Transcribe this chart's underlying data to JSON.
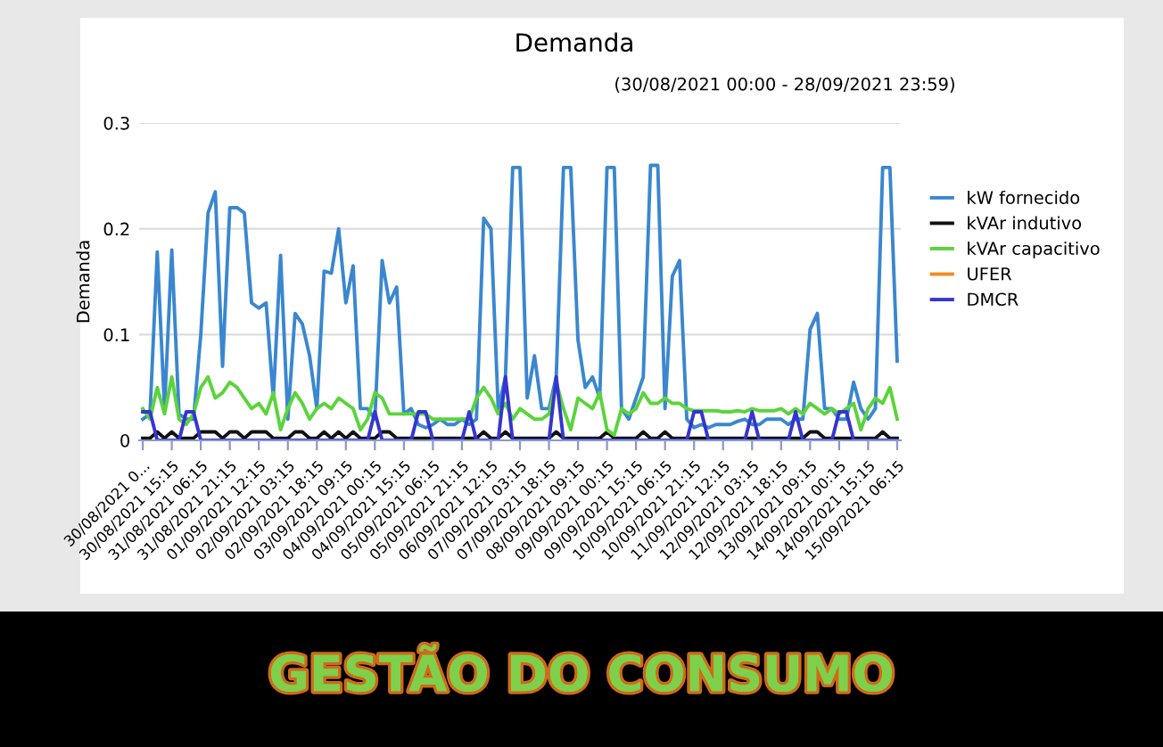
{
  "chart_data": {
    "type": "line",
    "title": "Demanda",
    "subtitle": "(30/08/2021 00:00 - 28/09/2021 23:59)",
    "ylabel": "Demanda",
    "categories": [
      "30/08/2021 0...",
      null,
      null,
      null,
      "30/08/2021 15:15",
      null,
      null,
      null,
      "31/08/2021 06:15",
      null,
      null,
      null,
      "31/08/2021 21:15",
      null,
      null,
      null,
      "01/09/2021 12:15",
      null,
      null,
      null,
      "02/09/2021 03:15",
      null,
      null,
      null,
      "02/09/2021 18:15",
      null,
      null,
      null,
      "03/09/2021 09:15",
      null,
      null,
      null,
      "04/09/2021 00:15",
      null,
      null,
      null,
      "04/09/2021 15:15",
      null,
      null,
      null,
      "05/09/2021 06:15",
      null,
      null,
      null,
      "05/09/2021 21:15",
      null,
      null,
      null,
      "06/09/2021 12:15",
      null,
      null,
      null,
      "07/09/2021 03:15",
      null,
      null,
      null,
      "07/09/2021 18:15",
      null,
      null,
      null,
      "08/09/2021 09:15",
      null,
      null,
      null,
      "09/09/2021 00:15",
      null,
      null,
      null,
      "09/09/2021 15:15",
      null,
      null,
      null,
      "10/09/2021 06:15",
      null,
      null,
      null,
      "10/09/2021 21:15",
      null,
      null,
      null,
      "11/09/2021 12:15",
      null,
      null,
      null,
      "12/09/2021 03:15",
      null,
      null,
      null,
      "12/09/2021 18:15",
      null,
      null,
      null,
      "13/09/2021 09:15",
      null,
      null,
      null,
      "14/09/2021 00:15",
      null,
      null,
      null,
      "14/09/2021 15:15",
      null,
      null,
      null,
      "15/09/2021 06:15"
    ],
    "series": [
      {
        "name": "kW fornecido",
        "color": "#3a87d0",
        "values": [
          0.02,
          0.025,
          0.178,
          0.03,
          0.18,
          0.025,
          0.02,
          0.02,
          0.1,
          0.215,
          0.235,
          0.07,
          0.22,
          0.22,
          0.215,
          0.13,
          0.125,
          0.13,
          0.04,
          0.175,
          0.02,
          0.12,
          0.11,
          0.08,
          0.03,
          0.16,
          0.158,
          0.2,
          0.13,
          0.165,
          0.03,
          0.03,
          0.02,
          0.17,
          0.13,
          0.145,
          0.025,
          0.03,
          0.015,
          0.012,
          0.015,
          0.02,
          0.015,
          0.015,
          0.02,
          0.015,
          0.02,
          0.21,
          0.2,
          0.03,
          0.06,
          0.258,
          0.258,
          0.04,
          0.08,
          0.03,
          0.03,
          0.06,
          0.258,
          0.258,
          0.095,
          0.05,
          0.06,
          0.04,
          0.258,
          0.258,
          0.03,
          0.02,
          0.04,
          0.06,
          0.26,
          0.26,
          0.03,
          0.155,
          0.17,
          0.02,
          0.012,
          0.015,
          0.012,
          0.015,
          0.015,
          0.015,
          0.018,
          0.02,
          0.015,
          0.015,
          0.02,
          0.02,
          0.02,
          0.015,
          0.02,
          0.02,
          0.105,
          0.12,
          0.03,
          0.03,
          0.02,
          0.02,
          0.055,
          0.03,
          0.02,
          0.03,
          0.258,
          0.258,
          0.075
        ]
      },
      {
        "name": "kVAr indutivo",
        "color": "#111111",
        "values": [
          0.002,
          0.002,
          0.008,
          0.002,
          0.008,
          0.002,
          0.002,
          0.002,
          0.008,
          0.008,
          0.008,
          0.002,
          0.008,
          0.008,
          0.002,
          0.008,
          0.008,
          0.008,
          0.002,
          0.002,
          0.002,
          0.008,
          0.008,
          0.002,
          0.002,
          0.008,
          0.002,
          0.008,
          0.002,
          0.008,
          0.002,
          0.002,
          0.002,
          0.008,
          0.008,
          0.002,
          0.002,
          0.002,
          0.002,
          0.002,
          0.002,
          0.002,
          0.002,
          0.002,
          0.002,
          0.002,
          0.002,
          0.008,
          0.002,
          0.002,
          0.008,
          0.002,
          0.002,
          0.002,
          0.002,
          0.002,
          0.002,
          0.008,
          0.002,
          0.002,
          0.002,
          0.002,
          0.002,
          0.002,
          0.008,
          0.002,
          0.002,
          0.002,
          0.002,
          0.008,
          0.002,
          0.002,
          0.008,
          0.002,
          0.002,
          0.002,
          0.002,
          0.002,
          0.002,
          0.002,
          0.002,
          0.002,
          0.002,
          0.002,
          0.002,
          0.002,
          0.002,
          0.002,
          0.002,
          0.002,
          0.002,
          0.002,
          0.008,
          0.008,
          0.002,
          0.002,
          0.002,
          0.002,
          0.002,
          0.002,
          0.002,
          0.002,
          0.008,
          0.002,
          0.002
        ]
      },
      {
        "name": "kVAr capacitivo",
        "color": "#5bd43c",
        "values": [
          0.03,
          0.02,
          0.05,
          0.025,
          0.06,
          0.02,
          0.015,
          0.025,
          0.05,
          0.06,
          0.04,
          0.045,
          0.055,
          0.05,
          0.04,
          0.03,
          0.035,
          0.025,
          0.045,
          0.01,
          0.03,
          0.045,
          0.035,
          0.02,
          0.03,
          0.035,
          0.03,
          0.04,
          0.035,
          0.03,
          0.01,
          0.02,
          0.045,
          0.04,
          0.025,
          0.025,
          0.025,
          0.025,
          0.025,
          0.025,
          0.02,
          0.02,
          0.02,
          0.02,
          0.02,
          0.02,
          0.04,
          0.05,
          0.04,
          0.025,
          0.035,
          0.02,
          0.03,
          0.025,
          0.02,
          0.02,
          0.025,
          0.055,
          0.03,
          0.01,
          0.04,
          0.035,
          0.03,
          0.045,
          0.01,
          0.005,
          0.03,
          0.025,
          0.03,
          0.045,
          0.035,
          0.035,
          0.04,
          0.035,
          0.035,
          0.03,
          0.028,
          0.028,
          0.028,
          0.028,
          0.027,
          0.027,
          0.028,
          0.027,
          0.03,
          0.028,
          0.028,
          0.028,
          0.03,
          0.025,
          0.03,
          0.025,
          0.035,
          0.03,
          0.025,
          0.03,
          0.025,
          0.03,
          0.035,
          0.01,
          0.03,
          0.04,
          0.035,
          0.05,
          0.02
        ]
      },
      {
        "name": "UFER",
        "color": "#f08c1e",
        "values": [
          null,
          null,
          null,
          null,
          null,
          null,
          null,
          null,
          null,
          null,
          null,
          null,
          null,
          null,
          null,
          null,
          null,
          null,
          null,
          null,
          null,
          null,
          null,
          null,
          null,
          null,
          null,
          null,
          null,
          null,
          null,
          null,
          null,
          null,
          null,
          null,
          null,
          null,
          null,
          null,
          null,
          null,
          null,
          null,
          null,
          null,
          null,
          null,
          null,
          null,
          null,
          null,
          null,
          null,
          null,
          null,
          null,
          null,
          null,
          null,
          null,
          null,
          null,
          null,
          null,
          null,
          null,
          null,
          null,
          null,
          null,
          null,
          null,
          null,
          null,
          null,
          null,
          null,
          null,
          null,
          null,
          null,
          null,
          null,
          null,
          null,
          null,
          null,
          null,
          null,
          null,
          null,
          null,
          null,
          null,
          null,
          null,
          null,
          null,
          null,
          null,
          null,
          null,
          null,
          null
        ]
      },
      {
        "name": "DMCR",
        "color": "#3535d0",
        "values": [
          0.027,
          0.027,
          0,
          0,
          0,
          0,
          0.027,
          0.027,
          0,
          0,
          0,
          0,
          0,
          0,
          0,
          0,
          0,
          0,
          0,
          0,
          0,
          0,
          0,
          0,
          0,
          0,
          0,
          0,
          0,
          0,
          0,
          0,
          0.027,
          0,
          0,
          0,
          0,
          0,
          0.027,
          0.027,
          0,
          0,
          0,
          0,
          0,
          0.027,
          0,
          0,
          0,
          0,
          0.06,
          0,
          0,
          0,
          0,
          0,
          0,
          0.06,
          0,
          0,
          0,
          0,
          0,
          0,
          0,
          0,
          0,
          0,
          0,
          0,
          0,
          0,
          0,
          0,
          0,
          0,
          0.027,
          0.027,
          0,
          0,
          0,
          0,
          0,
          0,
          0.027,
          0,
          0,
          0,
          0,
          0,
          0.027,
          0,
          0,
          0,
          0,
          0,
          0.027,
          0.027,
          0,
          0,
          0,
          0,
          0,
          0,
          0
        ]
      }
    ],
    "ylim": [
      0,
      0.3
    ],
    "yticks": [
      0,
      0.1,
      0.2,
      0.3
    ],
    "grid": "y",
    "legend": "right",
    "annotations": [
      "GESTÃO DO CONSUMO"
    ]
  }
}
